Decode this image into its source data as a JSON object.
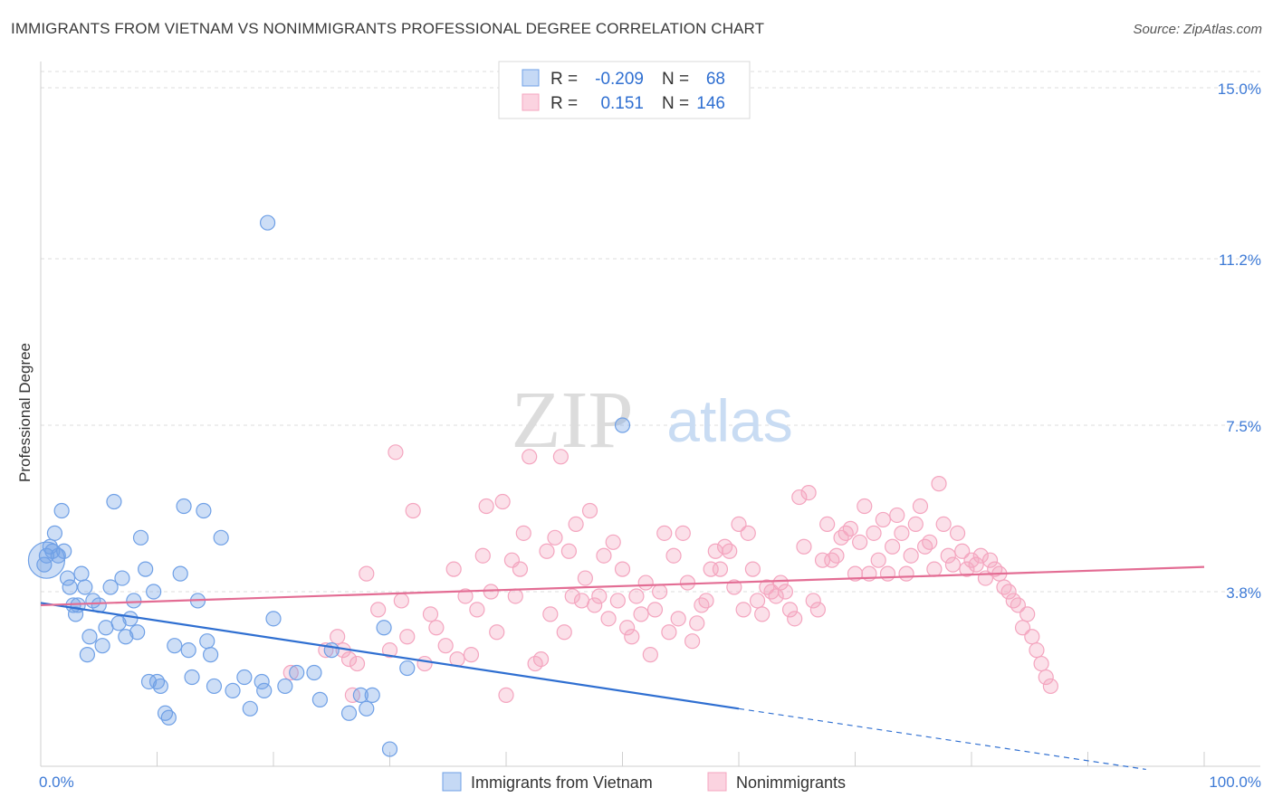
{
  "header": {
    "title": "IMMIGRANTS FROM VIETNAM VS NONIMMIGRANTS PROFESSIONAL DEGREE CORRELATION CHART",
    "source": "Source: ZipAtlas.com"
  },
  "watermark": {
    "zip": "ZIP",
    "atlas": "atlas"
  },
  "chart_data": {
    "type": "scatter",
    "title": "IMMIGRANTS FROM VIETNAM VS NONIMMIGRANTS PROFESSIONAL DEGREE CORRELATION CHART",
    "xlabel": "",
    "ylabel": "Professional Degree",
    "xlim": [
      0,
      100
    ],
    "ylim": [
      0,
      15
    ],
    "x_ticks": [
      {
        "value": 0,
        "label": "0.0%"
      },
      {
        "value": 100,
        "label": "100.0%"
      }
    ],
    "y_ticks": [
      {
        "value": 3.8,
        "label": "3.8%"
      },
      {
        "value": 7.5,
        "label": "7.5%"
      },
      {
        "value": 11.2,
        "label": "11.2%"
      },
      {
        "value": 15.0,
        "label": "15.0%"
      }
    ],
    "grid": true,
    "legend_placement": "top-center",
    "series": [
      {
        "name": "Immigrants from Vietnam",
        "color": "#6fa0e6",
        "line_color": "#2f6fd1",
        "r": "-0.209",
        "n": "68",
        "trend": {
          "x0": 0,
          "y0": 3.55,
          "x1": 60,
          "y1": 1.2,
          "dash_to_x": 95,
          "dash_to_y": -0.15
        },
        "points": [
          [
            0.3,
            4.4
          ],
          [
            0.5,
            4.6
          ],
          [
            0.8,
            4.8
          ],
          [
            1.0,
            4.7
          ],
          [
            1.2,
            5.1
          ],
          [
            1.5,
            4.6
          ],
          [
            1.8,
            5.6
          ],
          [
            2.0,
            4.7
          ],
          [
            2.3,
            4.1
          ],
          [
            2.5,
            3.9
          ],
          [
            2.8,
            3.5
          ],
          [
            3.0,
            3.3
          ],
          [
            3.5,
            4.2
          ],
          [
            3.8,
            3.9
          ],
          [
            4.0,
            2.4
          ],
          [
            4.2,
            2.8
          ],
          [
            4.5,
            3.6
          ],
          [
            5.0,
            3.5
          ],
          [
            5.3,
            2.6
          ],
          [
            5.6,
            3.0
          ],
          [
            6.0,
            3.9
          ],
          [
            6.3,
            5.8
          ],
          [
            6.7,
            3.1
          ],
          [
            7.0,
            4.1
          ],
          [
            7.3,
            2.8
          ],
          [
            7.7,
            3.2
          ],
          [
            8.0,
            3.6
          ],
          [
            8.3,
            2.9
          ],
          [
            8.6,
            5.0
          ],
          [
            9.0,
            4.3
          ],
          [
            9.3,
            1.8
          ],
          [
            9.7,
            3.8
          ],
          [
            10.0,
            1.8
          ],
          [
            10.3,
            1.7
          ],
          [
            10.7,
            1.1
          ],
          [
            11.0,
            1.0
          ],
          [
            11.5,
            2.6
          ],
          [
            12.0,
            4.2
          ],
          [
            12.3,
            5.7
          ],
          [
            12.7,
            2.5
          ],
          [
            13.0,
            1.9
          ],
          [
            13.5,
            3.6
          ],
          [
            14.0,
            5.6
          ],
          [
            14.3,
            2.7
          ],
          [
            14.6,
            2.4
          ],
          [
            14.9,
            1.7
          ],
          [
            15.5,
            5.0
          ],
          [
            16.5,
            1.6
          ],
          [
            17.5,
            1.9
          ],
          [
            18.0,
            1.2
          ],
          [
            19.0,
            1.8
          ],
          [
            19.2,
            1.6
          ],
          [
            19.5,
            12.0
          ],
          [
            20.0,
            3.2
          ],
          [
            21.0,
            1.7
          ],
          [
            22.0,
            2.0
          ],
          [
            23.5,
            2.0
          ],
          [
            24.0,
            1.4
          ],
          [
            25.0,
            2.5
          ],
          [
            26.5,
            1.1
          ],
          [
            27.5,
            1.5
          ],
          [
            28.0,
            1.2
          ],
          [
            28.5,
            1.5
          ],
          [
            29.5,
            3.0
          ],
          [
            30.0,
            0.3
          ],
          [
            31.5,
            2.1
          ],
          [
            50.0,
            7.5
          ],
          [
            3.2,
            3.5
          ]
        ],
        "big_point": [
          0.5,
          4.5
        ]
      },
      {
        "name": "Nonimmigrants",
        "color": "#f4a5bf",
        "line_color": "#e36d94",
        "r": "0.151",
        "n": "146",
        "trend": {
          "x0": 0,
          "y0": 3.5,
          "x1": 100,
          "y1": 4.35
        },
        "points": [
          [
            21.5,
            2.0
          ],
          [
            24.5,
            2.5
          ],
          [
            25.5,
            2.8
          ],
          [
            26.0,
            2.5
          ],
          [
            26.5,
            2.3
          ],
          [
            26.8,
            1.5
          ],
          [
            27.2,
            2.2
          ],
          [
            28.0,
            4.2
          ],
          [
            29.0,
            3.4
          ],
          [
            30.0,
            2.5
          ],
          [
            30.5,
            6.9
          ],
          [
            31.0,
            3.6
          ],
          [
            31.5,
            2.8
          ],
          [
            32.0,
            5.6
          ],
          [
            33.0,
            2.2
          ],
          [
            33.5,
            3.3
          ],
          [
            34.0,
            3.0
          ],
          [
            34.8,
            2.6
          ],
          [
            35.5,
            4.3
          ],
          [
            35.8,
            2.3
          ],
          [
            36.5,
            3.7
          ],
          [
            37.0,
            2.4
          ],
          [
            37.5,
            3.4
          ],
          [
            38.0,
            4.6
          ],
          [
            38.3,
            5.7
          ],
          [
            38.7,
            3.8
          ],
          [
            39.2,
            2.9
          ],
          [
            39.7,
            5.8
          ],
          [
            40.0,
            1.5
          ],
          [
            40.5,
            4.5
          ],
          [
            40.8,
            3.7
          ],
          [
            41.2,
            4.3
          ],
          [
            41.5,
            5.1
          ],
          [
            42.0,
            6.8
          ],
          [
            42.5,
            2.2
          ],
          [
            43.0,
            2.3
          ],
          [
            43.5,
            4.7
          ],
          [
            43.8,
            3.3
          ],
          [
            44.2,
            5.0
          ],
          [
            44.7,
            6.8
          ],
          [
            45.0,
            2.9
          ],
          [
            45.4,
            4.7
          ],
          [
            45.7,
            3.7
          ],
          [
            46.0,
            5.3
          ],
          [
            46.5,
            3.6
          ],
          [
            46.8,
            4.1
          ],
          [
            47.2,
            5.6
          ],
          [
            47.6,
            3.5
          ],
          [
            48.0,
            3.7
          ],
          [
            48.4,
            4.6
          ],
          [
            48.8,
            3.2
          ],
          [
            49.2,
            4.9
          ],
          [
            49.6,
            3.6
          ],
          [
            50.0,
            4.3
          ],
          [
            50.4,
            3.0
          ],
          [
            50.8,
            2.8
          ],
          [
            51.2,
            3.7
          ],
          [
            51.6,
            3.3
          ],
          [
            52.0,
            4.0
          ],
          [
            52.4,
            2.4
          ],
          [
            52.8,
            3.4
          ],
          [
            53.2,
            3.8
          ],
          [
            53.6,
            5.1
          ],
          [
            54.0,
            2.9
          ],
          [
            54.4,
            4.6
          ],
          [
            54.8,
            3.2
          ],
          [
            55.2,
            5.1
          ],
          [
            55.6,
            4.0
          ],
          [
            56.0,
            2.7
          ],
          [
            56.4,
            3.1
          ],
          [
            56.8,
            3.5
          ],
          [
            57.2,
            3.6
          ],
          [
            57.6,
            4.3
          ],
          [
            58.0,
            4.7
          ],
          [
            58.4,
            4.3
          ],
          [
            58.8,
            4.8
          ],
          [
            59.2,
            4.7
          ],
          [
            59.6,
            3.9
          ],
          [
            60.0,
            5.3
          ],
          [
            60.4,
            3.4
          ],
          [
            60.8,
            5.1
          ],
          [
            61.2,
            4.3
          ],
          [
            61.6,
            3.6
          ],
          [
            62.0,
            3.3
          ],
          [
            62.4,
            3.9
          ],
          [
            62.8,
            3.8
          ],
          [
            63.2,
            3.7
          ],
          [
            63.6,
            4.0
          ],
          [
            64.0,
            3.8
          ],
          [
            64.4,
            3.4
          ],
          [
            64.8,
            3.2
          ],
          [
            65.2,
            5.9
          ],
          [
            65.6,
            4.8
          ],
          [
            66.0,
            6.0
          ],
          [
            66.4,
            3.6
          ],
          [
            66.8,
            3.4
          ],
          [
            67.2,
            4.5
          ],
          [
            67.6,
            5.3
          ],
          [
            68.0,
            4.5
          ],
          [
            68.4,
            4.6
          ],
          [
            68.8,
            5.0
          ],
          [
            69.2,
            5.1
          ],
          [
            69.6,
            5.2
          ],
          [
            70.0,
            4.2
          ],
          [
            70.4,
            4.9
          ],
          [
            70.8,
            5.7
          ],
          [
            71.2,
            4.2
          ],
          [
            71.6,
            5.1
          ],
          [
            72.0,
            4.5
          ],
          [
            72.4,
            5.4
          ],
          [
            72.8,
            4.2
          ],
          [
            73.2,
            4.8
          ],
          [
            73.6,
            5.5
          ],
          [
            74.0,
            5.1
          ],
          [
            74.4,
            4.2
          ],
          [
            74.8,
            4.6
          ],
          [
            75.2,
            5.3
          ],
          [
            75.6,
            5.7
          ],
          [
            76.0,
            4.8
          ],
          [
            76.4,
            4.9
          ],
          [
            76.8,
            4.3
          ],
          [
            77.2,
            6.2
          ],
          [
            77.6,
            5.3
          ],
          [
            78.0,
            4.6
          ],
          [
            78.4,
            4.4
          ],
          [
            78.8,
            5.1
          ],
          [
            79.2,
            4.7
          ],
          [
            79.6,
            4.3
          ],
          [
            80.0,
            4.5
          ],
          [
            80.4,
            4.4
          ],
          [
            80.8,
            4.6
          ],
          [
            81.2,
            4.1
          ],
          [
            81.6,
            4.5
          ],
          [
            82.0,
            4.3
          ],
          [
            82.4,
            4.2
          ],
          [
            82.8,
            3.9
          ],
          [
            83.2,
            3.8
          ],
          [
            83.6,
            3.6
          ],
          [
            84.0,
            3.5
          ],
          [
            84.4,
            3.0
          ],
          [
            84.8,
            3.3
          ],
          [
            85.2,
            2.8
          ],
          [
            85.6,
            2.5
          ],
          [
            86.0,
            2.2
          ],
          [
            86.4,
            1.9
          ],
          [
            86.8,
            1.7
          ]
        ]
      }
    ]
  },
  "legend": {
    "items": [
      {
        "r_label": "R =",
        "r_value": "-0.209",
        "n_label": "N =",
        "n_value": "68"
      },
      {
        "r_label": "R =",
        "r_value": "0.151",
        "n_label": "N =",
        "n_value": "146"
      }
    ]
  },
  "bottom_legend": {
    "items": [
      {
        "label": "Immigrants from Vietnam"
      },
      {
        "label": "Nonimmigrants"
      }
    ]
  }
}
